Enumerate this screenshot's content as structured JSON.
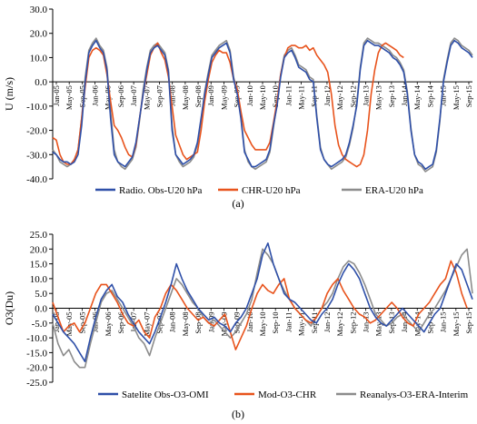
{
  "chart_data": [
    {
      "type": "line",
      "caption": "(a)",
      "ylabel": "U (m/s)",
      "ylim": [
        -40,
        30
      ],
      "yticks": [
        30,
        20,
        10,
        0,
        -10,
        -20,
        -30,
        -40
      ],
      "ytick_labels": [
        "30.0",
        "20.0",
        "10.0",
        "0.0",
        "-10.0",
        "-20.0",
        "-30.0",
        "-40.0"
      ],
      "x_tick_labels": [
        "Jan-05",
        "May-05",
        "Sep-05",
        "Jan-06",
        "May-06",
        "Sep-06",
        "Jan-07",
        "May-07",
        "Sep-07",
        "Jan-08",
        "May-08",
        "Sep-08",
        "Jan-09",
        "May-09",
        "Sep-09",
        "Jan-10",
        "May-10",
        "Sep-10",
        "Jan-11",
        "May-11",
        "Sep-11",
        "Jan-12",
        "May-12",
        "Sep-12",
        "Jan-13",
        "May-13",
        "Sep-13",
        "Jan-14",
        "May-14",
        "Sep-14",
        "Jan-15",
        "May-15",
        "Sep-15"
      ],
      "legend": "bottom",
      "series": [
        {
          "name": "Radio. Obs-U20 hPa",
          "color": "#2e4fa8",
          "values": [
            -29,
            -30,
            -32,
            -33,
            -33,
            -34,
            -33,
            -30,
            -18,
            0,
            12,
            15,
            17,
            14,
            12,
            5,
            -15,
            -30,
            -33,
            -34,
            -35,
            -33,
            -31,
            -25,
            -15,
            -5,
            5,
            12,
            14,
            15,
            13,
            11,
            4,
            -20,
            -30,
            -32,
            -34,
            -33,
            -32,
            -30,
            -25,
            -15,
            -5,
            3,
            10,
            12,
            14,
            15,
            16,
            12,
            1,
            -5,
            -15,
            -29,
            -32,
            -35,
            -35,
            -34,
            -33,
            -32,
            -28,
            -18,
            -10,
            2,
            10,
            12,
            13,
            10,
            6,
            5,
            4,
            1,
            0,
            -15,
            -28,
            -32,
            -34,
            -35,
            -34,
            -33,
            -32,
            -30,
            -25,
            -18,
            -10,
            5,
            15,
            17,
            16,
            15,
            15,
            14,
            13,
            12,
            10,
            9,
            7,
            4,
            -5,
            -20,
            -30,
            -33,
            -34,
            -36,
            -35,
            -34,
            -28,
            -15,
            0,
            8,
            15,
            17,
            16,
            14,
            13,
            12,
            10
          ]
        },
        {
          "name": "CHR-U20 hPa",
          "color": "#e8531c",
          "values": [
            -23,
            -24,
            -30,
            -33,
            -34,
            -34,
            -32,
            -28,
            -15,
            -2,
            10,
            13,
            14,
            13,
            11,
            3,
            -8,
            -18,
            -20,
            -23,
            -27,
            -30,
            -31,
            -26,
            -15,
            -5,
            3,
            11,
            14,
            16,
            12,
            9,
            2,
            -10,
            -22,
            -26,
            -30,
            -32,
            -31,
            -30,
            -29,
            -20,
            -8,
            1,
            8,
            11,
            13,
            12,
            12,
            8,
            1,
            -3,
            -12,
            -20,
            -23,
            -26,
            -28,
            -28,
            -28,
            -28,
            -25,
            -17,
            -8,
            3,
            10,
            14,
            15,
            15,
            14,
            14,
            15,
            13,
            14,
            11,
            9,
            7,
            4,
            -5,
            -18,
            -26,
            -30,
            -32,
            -33,
            -34,
            -35,
            -34,
            -30,
            -20,
            -5,
            5,
            12,
            15,
            16,
            15,
            14,
            13,
            11,
            10
          ]
        },
        {
          "name": "ERA-U20 hPa",
          "color": "#8c8c8c",
          "values": [
            -28,
            -30,
            -33,
            -34,
            -35,
            -34,
            -32,
            -28,
            -15,
            2,
            13,
            16,
            18,
            15,
            13,
            6,
            -12,
            -28,
            -33,
            -35,
            -36,
            -34,
            -32,
            -27,
            -16,
            -3,
            6,
            13,
            15,
            16,
            14,
            12,
            5,
            -18,
            -30,
            -33,
            -35,
            -34,
            -33,
            -31,
            -26,
            -16,
            -4,
            4,
            11,
            13,
            15,
            16,
            17,
            13,
            2,
            -4,
            -14,
            -28,
            -33,
            -35,
            -36,
            -35,
            -34,
            -33,
            -29,
            -19,
            -9,
            3,
            11,
            13,
            14,
            11,
            7,
            6,
            5,
            2,
            1,
            -14,
            -27,
            -32,
            -34,
            -36,
            -35,
            -34,
            -33,
            -31,
            -26,
            -19,
            -9,
            6,
            16,
            18,
            17,
            16,
            16,
            15,
            14,
            13,
            11,
            10,
            8,
            5,
            -4,
            -19,
            -30,
            -34,
            -35,
            -37,
            -36,
            -35,
            -29,
            -16,
            1,
            9,
            16,
            18,
            17,
            15,
            14,
            13,
            11
          ]
        }
      ]
    },
    {
      "type": "line",
      "caption": "(b)",
      "ylabel": "O3(Du)",
      "ylim": [
        -25,
        25
      ],
      "yticks": [
        25,
        20,
        15,
        10,
        5,
        0,
        -5,
        -10,
        -15,
        -20,
        -25
      ],
      "ytick_labels": [
        "25.0",
        "20.0",
        "15.0",
        "10.0",
        "5.0",
        "0.0",
        "-5.0",
        "-10.0",
        "-15.0",
        "-20.0",
        "-25.0"
      ],
      "x_tick_labels": [
        "Jan-05",
        "May-05",
        "Sep-05",
        "Jan-06",
        "May-06",
        "Sep-06",
        "Jan-07",
        "May-07",
        "Sep-07",
        "Jan-08",
        "May-08",
        "Sep-08",
        "Jan-09",
        "May-09",
        "Sep-09",
        "Jan-10",
        "May-10",
        "Sep-10",
        "Jan-11",
        "May-11",
        "Sep-11",
        "Jan-12",
        "May-12",
        "Sep-12",
        "Jan-13",
        "May-13",
        "Sep-13",
        "Jan-14",
        "May-14",
        "Sep-14",
        "Jan-15",
        "May-15",
        "Sep-15"
      ],
      "legend": "bottom",
      "series": [
        {
          "name": "Satelite Obs-O3-OMI",
          "color": "#2e4fa8",
          "values": [
            -2,
            -5,
            -8,
            -10,
            -12,
            -15,
            -18,
            -10,
            -3,
            3,
            6,
            8,
            4,
            2,
            -2,
            -5,
            -8,
            -10,
            -12,
            -8,
            -3,
            2,
            8,
            15,
            10,
            6,
            3,
            0,
            -2,
            -4,
            -3,
            -5,
            -6,
            -8,
            -5,
            -3,
            0,
            5,
            10,
            18,
            22,
            15,
            10,
            5,
            3,
            2,
            0,
            -2,
            -4,
            -5,
            -2,
            0,
            3,
            8,
            12,
            15,
            13,
            10,
            5,
            0,
            -3,
            -5,
            -6,
            -4,
            -2,
            0,
            -2,
            -4,
            -6,
            -8,
            -5,
            -2,
            0,
            5,
            10,
            15,
            13,
            8,
            3
          ]
        },
        {
          "name": "Mod-O3-CHR",
          "color": "#e8531c",
          "values": [
            2,
            -3,
            -8,
            -6,
            -5,
            -8,
            -5,
            0,
            5,
            8,
            8,
            5,
            2,
            -2,
            -5,
            -6,
            -4,
            -8,
            -10,
            -3,
            0,
            5,
            8,
            6,
            3,
            0,
            -2,
            -4,
            -3,
            -5,
            -6,
            -4,
            -2,
            -8,
            -14,
            -10,
            -6,
            0,
            5,
            8,
            6,
            5,
            8,
            10,
            3,
            0,
            -2,
            -4,
            -5,
            -3,
            0,
            5,
            8,
            10,
            6,
            3,
            0,
            -2,
            -3,
            -5,
            -4,
            -2,
            0,
            2,
            0,
            -3,
            -5,
            -6,
            -2,
            0,
            2,
            5,
            8,
            10,
            16,
            12,
            5,
            0
          ]
        },
        {
          "name": "Reanalys-O3-ERA-Interim",
          "color": "#8c8c8c",
          "values": [
            -5,
            -12,
            -16,
            -14,
            -18,
            -20,
            -20,
            -12,
            -5,
            2,
            5,
            6,
            3,
            0,
            -3,
            -6,
            -10,
            -12,
            -16,
            -10,
            -5,
            0,
            5,
            10,
            8,
            5,
            2,
            0,
            -3,
            -5,
            -4,
            -6,
            -8,
            -10,
            -8,
            -5,
            -2,
            3,
            12,
            20,
            18,
            15,
            10,
            6,
            3,
            0,
            -2,
            -4,
            -6,
            -3,
            0,
            2,
            5,
            10,
            14,
            16,
            15,
            12,
            8,
            3,
            -2,
            -4,
            -6,
            -5,
            -3,
            -2,
            -4,
            -6,
            -8,
            -5,
            -2,
            0,
            3,
            6,
            10,
            14,
            18,
            20,
            5
          ]
        }
      ]
    }
  ]
}
